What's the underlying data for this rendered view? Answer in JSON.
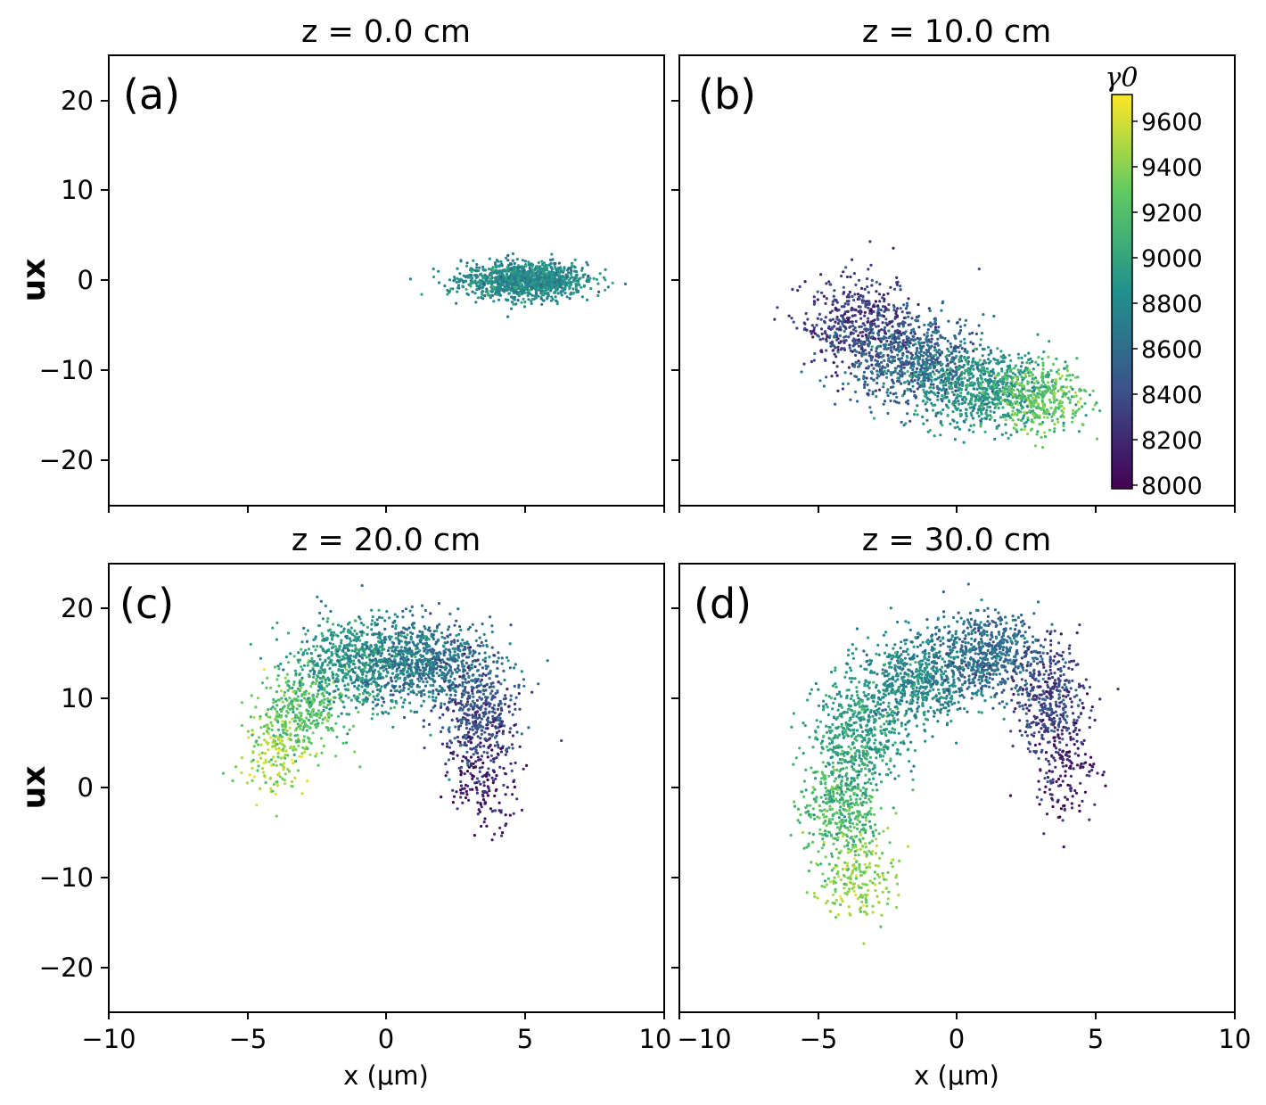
{
  "chart_data": [
    {
      "type": "scatter",
      "panel_label": "(a)",
      "title": "z = 0.0 cm",
      "xlabel": "",
      "ylabel": "ux",
      "xlim": [
        -10,
        10
      ],
      "ylim": [
        -25,
        25
      ],
      "yticks": [
        "20",
        "10",
        "0",
        "−10",
        "−20"
      ],
      "xticks": [],
      "clusters": [
        {
          "cx": 5.0,
          "cy": 0.0,
          "sx": 1.1,
          "sy": 1.0,
          "n": 1200,
          "color_value": 8800
        }
      ]
    },
    {
      "type": "scatter",
      "panel_label": "(b)",
      "title": "z = 10.0 cm",
      "xlabel": "",
      "ylabel": "",
      "xlim": [
        -10,
        10
      ],
      "ylim": [
        -25,
        25
      ],
      "yticks": [],
      "xticks": [],
      "clusters": [
        {
          "cx": -3.5,
          "cy": -5.0,
          "sx": 1.0,
          "sy": 2.6,
          "n": 500,
          "color_value": 8300
        },
        {
          "cx": -1.5,
          "cy": -9.0,
          "sx": 1.2,
          "sy": 2.4,
          "n": 700,
          "color_value": 8550
        },
        {
          "cx": 1.0,
          "cy": -12.0,
          "sx": 1.2,
          "sy": 2.2,
          "n": 700,
          "color_value": 8900
        },
        {
          "cx": 3.0,
          "cy": -13.0,
          "sx": 0.9,
          "sy": 1.8,
          "n": 350,
          "color_value": 9250
        }
      ]
    },
    {
      "type": "scatter",
      "panel_label": "(c)",
      "title": "z = 20.0 cm",
      "xlabel": "x (μm)",
      "ylabel": "ux",
      "xlim": [
        -10,
        10
      ],
      "ylim": [
        -25,
        25
      ],
      "yticks": [
        "20",
        "10",
        "0",
        "−10",
        "−20"
      ],
      "xticks": [
        "−10",
        "−5",
        "0",
        "5",
        "10"
      ],
      "clusters": [
        {
          "cx": -4.0,
          "cy": 4.0,
          "sx": 0.6,
          "sy": 2.5,
          "n": 180,
          "color_value": 9450
        },
        {
          "cx": -3.0,
          "cy": 9.0,
          "sx": 0.8,
          "sy": 2.2,
          "n": 350,
          "color_value": 9200
        },
        {
          "cx": -1.0,
          "cy": 14.0,
          "sx": 1.2,
          "sy": 2.4,
          "n": 700,
          "color_value": 8900
        },
        {
          "cx": 1.5,
          "cy": 14.0,
          "sx": 1.2,
          "sy": 2.4,
          "n": 700,
          "color_value": 8650
        },
        {
          "cx": 3.3,
          "cy": 8.0,
          "sx": 0.7,
          "sy": 3.0,
          "n": 400,
          "color_value": 8400
        },
        {
          "cx": 3.5,
          "cy": 1.0,
          "sx": 0.6,
          "sy": 3.0,
          "n": 180,
          "color_value": 8150
        }
      ]
    },
    {
      "type": "scatter",
      "panel_label": "(d)",
      "title": "z = 30.0 cm",
      "xlabel": "x (μm)",
      "ylabel": "",
      "xlim": [
        -10,
        10
      ],
      "ylim": [
        -25,
        25
      ],
      "yticks": [],
      "xticks": [
        "−10",
        "−5",
        "0",
        "5",
        "10"
      ],
      "clusters": [
        {
          "cx": -3.5,
          "cy": -10.0,
          "sx": 0.7,
          "sy": 2.5,
          "n": 220,
          "color_value": 9400
        },
        {
          "cx": -4.2,
          "cy": -2.0,
          "sx": 0.7,
          "sy": 3.0,
          "n": 400,
          "color_value": 9150
        },
        {
          "cx": -3.5,
          "cy": 6.0,
          "sx": 0.8,
          "sy": 3.0,
          "n": 500,
          "color_value": 8950
        },
        {
          "cx": -1.5,
          "cy": 12.0,
          "sx": 1.0,
          "sy": 2.5,
          "n": 600,
          "color_value": 8800
        },
        {
          "cx": 1.0,
          "cy": 15.0,
          "sx": 1.0,
          "sy": 2.4,
          "n": 600,
          "color_value": 8600
        },
        {
          "cx": 3.3,
          "cy": 10.0,
          "sx": 0.7,
          "sy": 3.0,
          "n": 400,
          "color_value": 8350
        },
        {
          "cx": 3.8,
          "cy": 2.0,
          "sx": 0.6,
          "sy": 3.0,
          "n": 150,
          "color_value": 8150
        }
      ]
    }
  ],
  "colorbar": {
    "label": "γ0",
    "min": 8000,
    "max": 9700,
    "ticks": [
      "9600",
      "9400",
      "9200",
      "9000",
      "8800",
      "8600",
      "8400",
      "8200",
      "8000"
    ],
    "colormap": [
      "#440154",
      "#3b528b",
      "#21918c",
      "#5ec962",
      "#fde725"
    ]
  }
}
